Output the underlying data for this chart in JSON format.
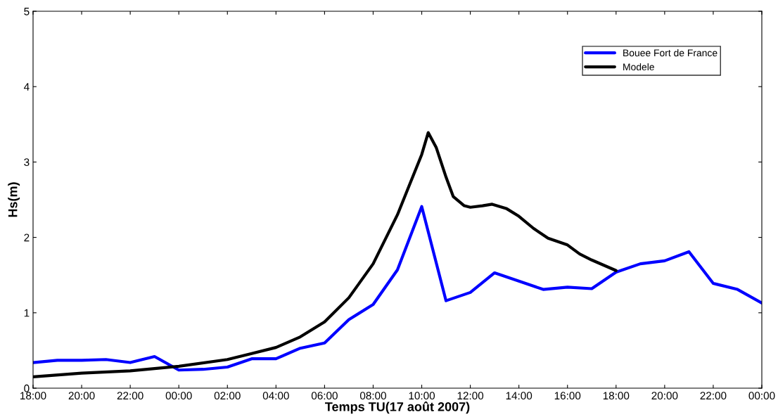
{
  "chart_data": {
    "type": "line",
    "xlabel": "Temps TU(17 août 2007)",
    "ylabel": "Hs(m)",
    "xlim": [
      "2007-08-16T18:00",
      "2007-08-18T00:00"
    ],
    "xticks": [
      {
        "value": "2007-08-16T18:00",
        "label": "18:00"
      },
      {
        "value": "2007-08-16T20:00",
        "label": "20:00"
      },
      {
        "value": "2007-08-16T22:00",
        "label": "22:00"
      },
      {
        "value": "2007-08-17T00:00",
        "label": "00:00"
      },
      {
        "value": "2007-08-17T02:00",
        "label": "02:00"
      },
      {
        "value": "2007-08-17T04:00",
        "label": "04:00"
      },
      {
        "value": "2007-08-17T06:00",
        "label": "06:00"
      },
      {
        "value": "2007-08-17T08:00",
        "label": "08:00"
      },
      {
        "value": "2007-08-17T10:00",
        "label": "10:00"
      },
      {
        "value": "2007-08-17T12:00",
        "label": "12:00"
      },
      {
        "value": "2007-08-17T14:00",
        "label": "14:00"
      },
      {
        "value": "2007-08-17T16:00",
        "label": "16:00"
      },
      {
        "value": "2007-08-17T18:00",
        "label": "18:00"
      },
      {
        "value": "2007-08-17T20:00",
        "label": "20:00"
      },
      {
        "value": "2007-08-17T22:00",
        "label": "22:00"
      },
      {
        "value": "2007-08-18T00:00",
        "label": "00:00"
      }
    ],
    "ylim": [
      0,
      5
    ],
    "yticks": [
      0,
      1,
      2,
      3,
      4,
      5
    ],
    "grid": false,
    "legend": "top right",
    "marker": "none",
    "line_style": "solid",
    "series": [
      {
        "name": "Bouee Fort de France",
        "color": "#0000ff",
        "x": [
          "2007-08-16T18:00",
          "2007-08-16T19:00",
          "2007-08-16T20:00",
          "2007-08-16T21:00",
          "2007-08-16T22:00",
          "2007-08-16T23:00",
          "2007-08-17T00:00",
          "2007-08-17T01:00",
          "2007-08-17T02:00",
          "2007-08-17T03:00",
          "2007-08-17T04:00",
          "2007-08-17T05:00",
          "2007-08-17T06:00",
          "2007-08-17T07:00",
          "2007-08-17T08:00",
          "2007-08-17T09:00",
          "2007-08-17T10:00",
          "2007-08-17T11:00",
          "2007-08-17T12:00",
          "2007-08-17T13:00",
          "2007-08-17T14:00",
          "2007-08-17T15:00",
          "2007-08-17T16:00",
          "2007-08-17T17:00",
          "2007-08-17T18:00",
          "2007-08-17T19:00",
          "2007-08-17T20:00",
          "2007-08-17T21:00",
          "2007-08-17T22:00",
          "2007-08-17T23:00",
          "2007-08-18T00:00"
        ],
        "values": [
          0.34,
          0.37,
          0.37,
          0.38,
          0.34,
          0.42,
          0.24,
          0.25,
          0.28,
          0.39,
          0.39,
          0.53,
          0.6,
          0.91,
          1.11,
          1.57,
          2.41,
          1.16,
          1.27,
          1.53,
          1.42,
          1.31,
          1.34,
          1.32,
          1.54,
          1.65,
          1.69,
          1.81,
          1.39,
          1.31,
          1.13
        ]
      },
      {
        "name": "Modele",
        "color": "#000000",
        "x": [
          "2007-08-16T18:00",
          "2007-08-16T20:00",
          "2007-08-16T22:00",
          "2007-08-17T00:00",
          "2007-08-17T02:00",
          "2007-08-17T03:00",
          "2007-08-17T04:00",
          "2007-08-17T05:00",
          "2007-08-17T06:00",
          "2007-08-17T07:00",
          "2007-08-17T08:00",
          "2007-08-17T09:00",
          "2007-08-17T09:30",
          "2007-08-17T10:00",
          "2007-08-17T10:16",
          "2007-08-17T10:36",
          "2007-08-17T11:00",
          "2007-08-17T11:18",
          "2007-08-17T11:45",
          "2007-08-17T12:00",
          "2007-08-17T12:30",
          "2007-08-17T12:54",
          "2007-08-17T13:30",
          "2007-08-17T14:00",
          "2007-08-17T14:36",
          "2007-08-17T15:12",
          "2007-08-17T16:00",
          "2007-08-17T16:30",
          "2007-08-17T17:00",
          "2007-08-17T18:00"
        ],
        "values": [
          0.15,
          0.2,
          0.23,
          0.29,
          0.38,
          0.46,
          0.54,
          0.68,
          0.88,
          1.2,
          1.65,
          2.3,
          2.7,
          3.1,
          3.39,
          3.19,
          2.8,
          2.54,
          2.42,
          2.4,
          2.42,
          2.44,
          2.38,
          2.28,
          2.12,
          1.99,
          1.9,
          1.78,
          1.7,
          1.56
        ]
      }
    ]
  }
}
